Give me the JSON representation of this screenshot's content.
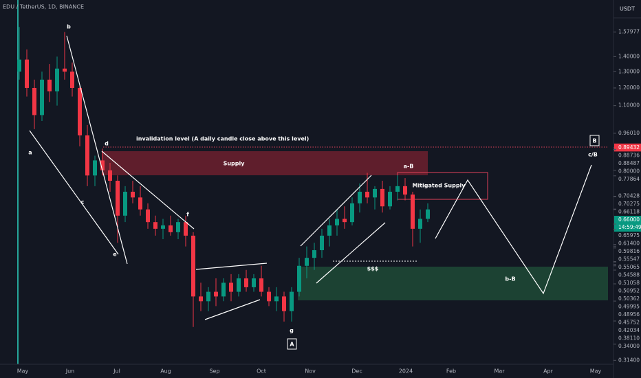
{
  "chart_data": {
    "type": "candlestick",
    "header": "EDU / TetherUS, 1D, BINANCE",
    "currency": "USDT",
    "log_scale": true,
    "ylim": [
      0.308,
      1.85
    ],
    "yticks": [
      {
        "value": 1.57977,
        "label": "1.57977"
      },
      {
        "value": 1.4,
        "label": "1.40000"
      },
      {
        "value": 1.3,
        "label": "1.30000"
      },
      {
        "value": 1.2,
        "label": "1.20000"
      },
      {
        "value": 1.1,
        "label": "1.10000"
      },
      {
        "value": 0.9601,
        "label": "0.96010"
      },
      {
        "value": 0.88736,
        "label": "0.88736"
      },
      {
        "value": 0.88487,
        "label": "0.88487"
      },
      {
        "value": 0.8,
        "label": "0.80000"
      },
      {
        "value": 0.77864,
        "label": "0.77864"
      },
      {
        "value": 0.70428,
        "label": "0.70428"
      },
      {
        "value": 0.70275,
        "label": "0.70275"
      },
      {
        "value": 0.66118,
        "label": "0.66118"
      },
      {
        "value": 0.65975,
        "label": "0.65975"
      },
      {
        "value": 0.614,
        "label": "0.61400"
      },
      {
        "value": 0.59816,
        "label": "0.59816"
      },
      {
        "value": 0.55547,
        "label": "0.55547"
      },
      {
        "value": 0.55065,
        "label": "0.55065"
      },
      {
        "value": 0.54588,
        "label": "0.54588"
      },
      {
        "value": 0.51058,
        "label": "0.51058"
      },
      {
        "value": 0.50952,
        "label": "0.50952"
      },
      {
        "value": 0.50362,
        "label": "0.50362"
      },
      {
        "value": 0.49995,
        "label": "0.49995"
      },
      {
        "value": 0.48956,
        "label": "0.48956"
      },
      {
        "value": 0.45752,
        "label": "0.45752"
      },
      {
        "value": 0.42034,
        "label": "0.42034"
      },
      {
        "value": 0.3811,
        "label": "0.38110"
      },
      {
        "value": 0.34,
        "label": "0.34000"
      },
      {
        "value": 0.314,
        "label": "0.31400"
      }
    ],
    "price_label": {
      "value": 0.66,
      "label": "0.66000",
      "time": "14:59:49",
      "color": "#089981"
    },
    "alert_label": {
      "value": 0.89432,
      "label": "0.89432",
      "color": "#f23645"
    },
    "xticks": [
      "May",
      "Jun",
      "Jul",
      "Aug",
      "Sep",
      "Oct",
      "Nov",
      "Dec",
      "2024",
      "Feb",
      "Mar",
      "Apr",
      "May"
    ],
    "up_color": "#089981",
    "down_color": "#f23645",
    "candles": {
      "open": [
        1.3,
        1.38,
        1.2,
        1.05,
        1.25,
        1.18,
        1.32,
        1.3,
        1.2,
        0.95,
        0.78,
        0.84,
        0.8,
        0.76,
        0.64,
        0.72,
        0.7,
        0.66,
        0.62,
        0.6,
        0.61,
        0.59,
        0.62,
        0.58,
        0.43,
        0.42,
        0.44,
        0.43,
        0.46,
        0.44,
        0.47,
        0.45,
        0.47,
        0.44,
        0.42,
        0.43,
        0.4,
        0.44,
        0.5,
        0.52,
        0.54,
        0.58,
        0.61,
        0.63,
        0.62,
        0.68,
        0.72,
        0.7,
        0.73,
        0.67,
        0.72,
        0.74,
        0.71,
        0.6,
        0.63
      ],
      "high": [
        1.62,
        1.45,
        1.25,
        1.3,
        1.35,
        1.4,
        1.58,
        1.36,
        1.22,
        1.0,
        0.86,
        0.89,
        0.83,
        0.78,
        0.74,
        0.76,
        0.74,
        0.68,
        0.64,
        0.63,
        0.64,
        0.63,
        0.64,
        0.59,
        0.46,
        0.45,
        0.47,
        0.47,
        0.48,
        0.48,
        0.49,
        0.48,
        0.5,
        0.45,
        0.45,
        0.44,
        0.45,
        0.52,
        0.55,
        0.56,
        0.6,
        0.63,
        0.66,
        0.67,
        0.7,
        0.75,
        0.79,
        0.74,
        0.76,
        0.74,
        0.78,
        0.77,
        0.72,
        0.66,
        0.68
      ],
      "low": [
        1.25,
        1.15,
        0.98,
        1.02,
        1.12,
        1.1,
        1.25,
        1.15,
        0.9,
        0.74,
        0.74,
        0.78,
        0.72,
        0.56,
        0.62,
        0.68,
        0.64,
        0.6,
        0.58,
        0.57,
        0.58,
        0.57,
        0.55,
        0.37,
        0.4,
        0.4,
        0.41,
        0.42,
        0.42,
        0.43,
        0.44,
        0.44,
        0.43,
        0.41,
        0.4,
        0.38,
        0.38,
        0.43,
        0.47,
        0.49,
        0.52,
        0.55,
        0.58,
        0.6,
        0.61,
        0.65,
        0.68,
        0.66,
        0.65,
        0.66,
        0.69,
        0.69,
        0.55,
        0.56,
        0.62
      ],
      "close": [
        1.38,
        1.2,
        1.05,
        1.25,
        1.18,
        1.32,
        1.3,
        1.2,
        0.95,
        0.78,
        0.84,
        0.8,
        0.76,
        0.64,
        0.72,
        0.7,
        0.66,
        0.62,
        0.6,
        0.61,
        0.59,
        0.62,
        0.58,
        0.43,
        0.42,
        0.44,
        0.43,
        0.46,
        0.44,
        0.47,
        0.45,
        0.47,
        0.44,
        0.42,
        0.43,
        0.4,
        0.44,
        0.5,
        0.52,
        0.54,
        0.58,
        0.61,
        0.63,
        0.62,
        0.68,
        0.72,
        0.7,
        0.73,
        0.67,
        0.72,
        0.74,
        0.71,
        0.6,
        0.63,
        0.66
      ]
    },
    "annotations": {
      "invalidation": "invalidation level (A daily candle close above this level)",
      "supply": "Supply",
      "mitigated": "Mitigated Supply",
      "a": "a",
      "b": "b",
      "c": "c",
      "d": "d",
      "e": "e",
      "f": "f",
      "g": "g",
      "A": "A",
      "B": "B",
      "cB": "c/B",
      "aB": "a-B",
      "bB": "b-B",
      "liquidity": "$$$"
    }
  }
}
